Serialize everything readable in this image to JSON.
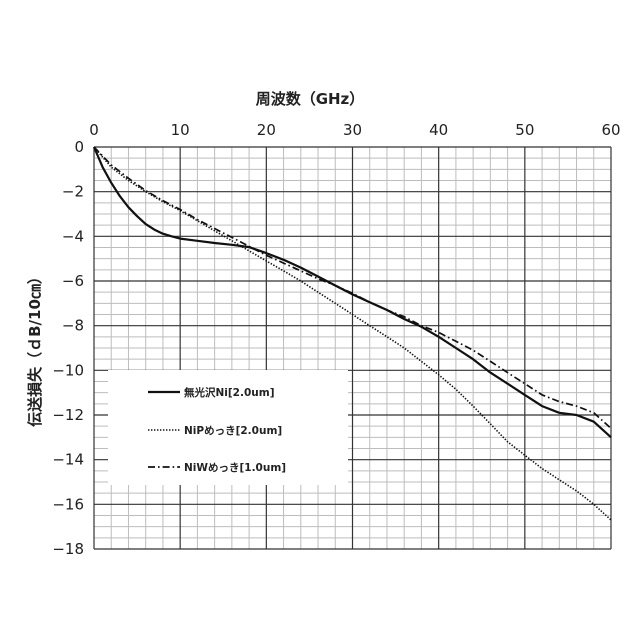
{
  "chart_data": {
    "type": "line",
    "xlabel": "周波数（GHz）",
    "ylabel": "伝送損失（ｄB/10㎝）",
    "xlim": [
      0,
      60
    ],
    "ylim": [
      -18,
      0
    ],
    "x_ticks": [
      0,
      10,
      20,
      30,
      40,
      50,
      60
    ],
    "y_ticks": [
      0,
      -2,
      -4,
      -6,
      -8,
      -10,
      -12,
      -14,
      -16,
      -18
    ],
    "x_tick_labels": [
      "0",
      "10",
      "20",
      "30",
      "40",
      "50",
      "60"
    ],
    "y_tick_labels": [
      "0",
      "−2",
      "−4",
      "−6",
      "−8",
      "−10",
      "−12",
      "−14",
      "−16",
      "−18"
    ],
    "x_axis_position": "top",
    "grid": true,
    "legend_position": "lower-left",
    "series": [
      {
        "name": "無光沢Ni[2.0um]",
        "style": "solid",
        "x": [
          0,
          1,
          2,
          3,
          4,
          5,
          6,
          7,
          8,
          9,
          10,
          12,
          14,
          16,
          18,
          20,
          22,
          24,
          26,
          28,
          30,
          32,
          34,
          36,
          38,
          40,
          42,
          44,
          46,
          48,
          50,
          52,
          54,
          56,
          58,
          60
        ],
        "y": [
          0,
          -0.9,
          -1.6,
          -2.2,
          -2.7,
          -3.1,
          -3.45,
          -3.7,
          -3.88,
          -4.0,
          -4.1,
          -4.2,
          -4.3,
          -4.38,
          -4.48,
          -4.75,
          -5.05,
          -5.4,
          -5.8,
          -6.2,
          -6.6,
          -6.95,
          -7.3,
          -7.7,
          -8.05,
          -8.5,
          -9.0,
          -9.5,
          -10.1,
          -10.6,
          -11.1,
          -11.6,
          -11.9,
          -12.0,
          -12.3,
          -13.0
        ]
      },
      {
        "name": "NiPめっき[2.0um]",
        "style": "dotted",
        "x": [
          0,
          2,
          4,
          6,
          8,
          10,
          12,
          14,
          16,
          18,
          20,
          22,
          24,
          26,
          28,
          30,
          32,
          34,
          36,
          38,
          40,
          42,
          44,
          46,
          48,
          50,
          52,
          54,
          56,
          58,
          60
        ],
        "y": [
          0,
          -0.9,
          -1.5,
          -2.0,
          -2.45,
          -2.85,
          -3.3,
          -3.75,
          -4.2,
          -4.65,
          -5.1,
          -5.55,
          -6.0,
          -6.5,
          -7.0,
          -7.5,
          -8.0,
          -8.5,
          -9.0,
          -9.6,
          -10.2,
          -10.85,
          -11.6,
          -12.4,
          -13.2,
          -13.8,
          -14.4,
          -14.9,
          -15.4,
          -16.0,
          -16.7
        ]
      },
      {
        "name": "NiWめっき[1.0um]",
        "style": "dashdot",
        "x": [
          0,
          2,
          4,
          6,
          8,
          10,
          12,
          14,
          16,
          18,
          20,
          22,
          24,
          26,
          28,
          30,
          32,
          34,
          36,
          38,
          40,
          42,
          44,
          46,
          48,
          50,
          52,
          54,
          56,
          58,
          60
        ],
        "y": [
          0,
          -0.8,
          -1.4,
          -1.95,
          -2.4,
          -2.8,
          -3.25,
          -3.65,
          -4.05,
          -4.45,
          -4.85,
          -5.2,
          -5.55,
          -5.9,
          -6.2,
          -6.55,
          -6.95,
          -7.3,
          -7.6,
          -8.0,
          -8.3,
          -8.7,
          -9.1,
          -9.6,
          -10.1,
          -10.6,
          -11.1,
          -11.4,
          -11.6,
          -11.9,
          -12.6
        ]
      }
    ]
  }
}
